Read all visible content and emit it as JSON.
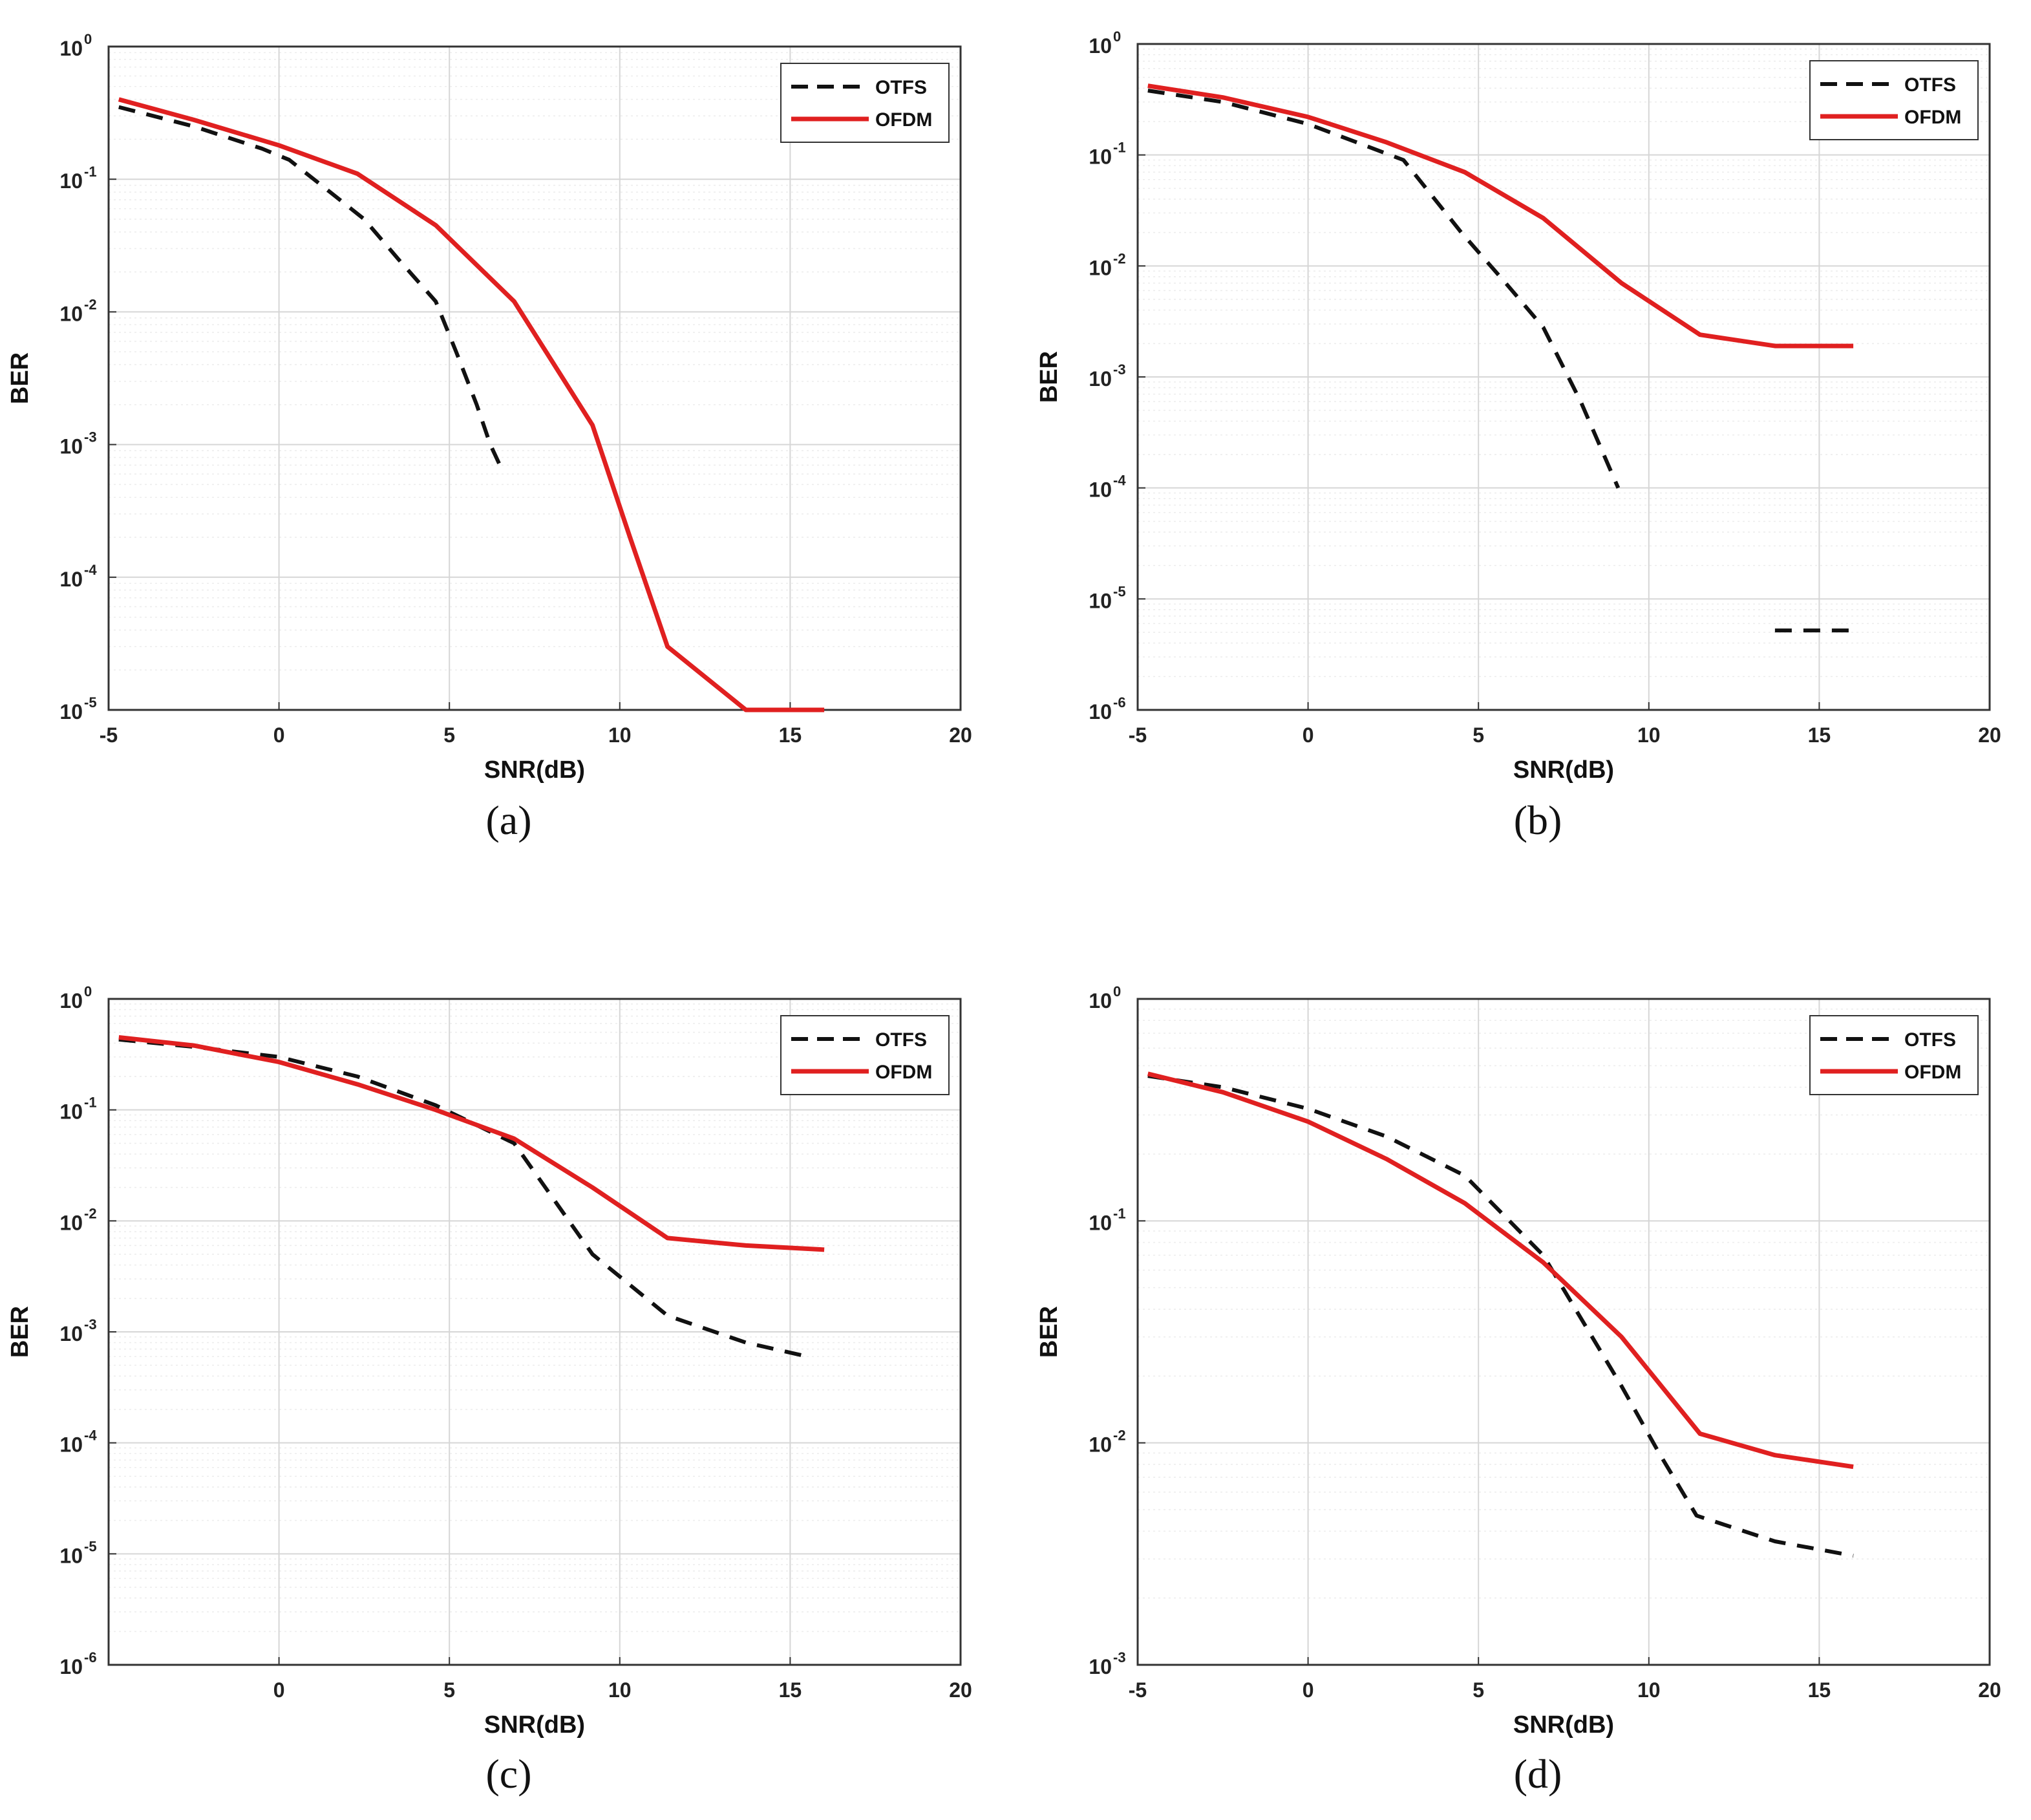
{
  "chart_data": [
    {
      "id": "a",
      "type": "line",
      "caption": "(a)",
      "xlabel": "SNR(dB)",
      "ylabel": "BER",
      "xlim": [
        -5,
        20
      ],
      "xticks": [
        "-5",
        "0",
        "5",
        "10",
        "15",
        "20"
      ],
      "yscale": "log",
      "ylim_exp": [
        -5,
        0
      ],
      "grid": true,
      "legend": "top-right",
      "series": [
        {
          "name": "OTFS",
          "color": "#111111",
          "style": "dashed",
          "x": [
            -4.7,
            -2.5,
            -0.5,
            0.3,
            1.5,
            2.5,
            3.5,
            4.6,
            5.2,
            5.8,
            6.2,
            6.6
          ],
          "y": [
            0.35,
            0.25,
            0.17,
            0.14,
            0.08,
            0.05,
            0.025,
            0.012,
            0.005,
            0.002,
            0.001,
            0.0006
          ]
        },
        {
          "name": "OFDM",
          "color": "#e02020",
          "style": "solid",
          "x": [
            -4.7,
            -2.5,
            0,
            2.3,
            4.6,
            6.9,
            9.2,
            10.3,
            11.4,
            13.7,
            16
          ],
          "y": [
            0.4,
            0.28,
            0.18,
            0.11,
            0.045,
            0.012,
            0.0014,
            0.0002,
            3e-05,
            1e-05,
            1e-05
          ]
        }
      ]
    },
    {
      "id": "b",
      "type": "line",
      "caption": "(b)",
      "xlabel": "SNR(dB)",
      "ylabel": "BER",
      "xlim": [
        -5,
        20
      ],
      "xticks": [
        "-5",
        "0",
        "5",
        "10",
        "15",
        "20"
      ],
      "yscale": "log",
      "ylim_exp": [
        -6,
        0
      ],
      "grid": true,
      "legend": "top-right",
      "series": [
        {
          "name": "OTFS",
          "color": "#111111",
          "style": "dashed",
          "x": [
            -4.7,
            -2.5,
            0,
            2.8,
            4.5,
            5.8,
            6.9,
            8,
            9.1
          ],
          "y": [
            0.38,
            0.3,
            0.19,
            0.09,
            0.02,
            0.007,
            0.0028,
            0.0006,
            0.0001
          ]
        },
        {
          "name": "OTFS",
          "color": "#111111",
          "style": "dashed",
          "x": [
            13.7,
            16
          ],
          "y": [
            5.2e-06,
            5.2e-06
          ]
        },
        {
          "name": "OFDM",
          "color": "#e02020",
          "style": "solid",
          "x": [
            -4.7,
            -2.5,
            0,
            2.3,
            4.6,
            6.9,
            9.2,
            11.5,
            13.7,
            16
          ],
          "y": [
            0.42,
            0.33,
            0.22,
            0.13,
            0.07,
            0.027,
            0.007,
            0.0024,
            0.0019,
            0.0019
          ]
        }
      ]
    },
    {
      "id": "c",
      "type": "line",
      "caption": "(c)",
      "xlabel": "SNR(dB)",
      "ylabel": "BER",
      "xlim": [
        -5,
        20
      ],
      "xticks": [
        "",
        "0",
        "5",
        "10",
        "15",
        "20"
      ],
      "yscale": "log",
      "ylim_exp": [
        -6,
        0
      ],
      "grid": true,
      "legend": "top-right",
      "series": [
        {
          "name": "OTFS",
          "color": "#111111",
          "style": "dashed",
          "x": [
            -4.7,
            -2.5,
            0,
            2.3,
            4.6,
            6.9,
            9.2,
            11.4,
            13.7,
            15.5
          ],
          "y": [
            0.43,
            0.37,
            0.3,
            0.2,
            0.11,
            0.05,
            0.005,
            0.0014,
            0.0008,
            0.0006
          ]
        },
        {
          "name": "OFDM",
          "color": "#e02020",
          "style": "solid",
          "x": [
            -4.7,
            -2.5,
            0,
            2.3,
            4.6,
            6.9,
            9.2,
            11.4,
            13.7,
            16
          ],
          "y": [
            0.45,
            0.38,
            0.27,
            0.17,
            0.1,
            0.055,
            0.02,
            0.007,
            0.006,
            0.0055
          ]
        }
      ]
    },
    {
      "id": "d",
      "type": "line",
      "caption": "(d)",
      "xlabel": "SNR(dB)",
      "ylabel": "BER",
      "xlim": [
        -5,
        20
      ],
      "xticks": [
        "-5",
        "0",
        "5",
        "10",
        "15",
        "20"
      ],
      "yscale": "log",
      "ylim_exp": [
        -3,
        0
      ],
      "grid": true,
      "legend": "top-right",
      "series": [
        {
          "name": "OTFS",
          "color": "#111111",
          "style": "dashed",
          "x": [
            -4.7,
            -2.5,
            0,
            2.3,
            4.6,
            6.9,
            9.2,
            10.3,
            11.4,
            13.7,
            16
          ],
          "y": [
            0.45,
            0.4,
            0.32,
            0.24,
            0.16,
            0.07,
            0.018,
            0.009,
            0.0047,
            0.0036,
            0.0031
          ]
        },
        {
          "name": "OFDM",
          "color": "#e02020",
          "style": "solid",
          "x": [
            -4.7,
            -2.5,
            0,
            2.3,
            4.6,
            6.9,
            9.2,
            11.5,
            13.7,
            16
          ],
          "y": [
            0.46,
            0.38,
            0.28,
            0.19,
            0.12,
            0.065,
            0.03,
            0.011,
            0.0088,
            0.0078
          ]
        }
      ]
    }
  ]
}
